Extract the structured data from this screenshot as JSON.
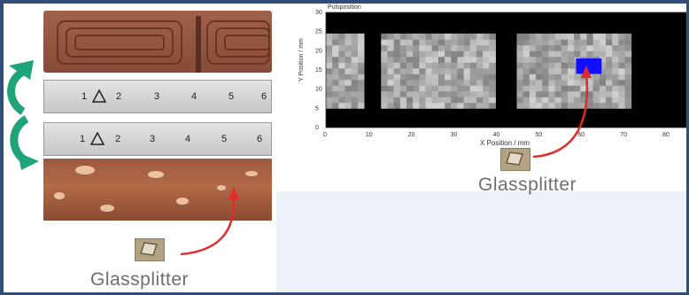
{
  "slide": {
    "accent_color": "#2f4f7a",
    "background_color": "#ffffff"
  },
  "left_panel": {
    "ruler_top_labels": [
      "1",
      "2",
      "3",
      "4",
      "5",
      "6"
    ],
    "ruler_bottom_labels": [
      "1",
      "2",
      "3",
      "4",
      "5",
      "6"
    ],
    "arrow_color": "#1fa37a",
    "pointer_arrow_color": "#e02b2b",
    "crystal_label": "Glassplitter"
  },
  "right_panel": {
    "crystal_label": "Glassplitter",
    "pointer_arrow_color": "#e02b2b"
  },
  "chart_data": {
    "type": "heatmap",
    "title": "Pulsposition",
    "xlabel": "X Position / mm",
    "ylabel": "Y Position / mm",
    "xlim": [
      0,
      85
    ],
    "ylim": [
      0,
      30
    ],
    "x_ticks": [
      "0",
      "10",
      "20",
      "30",
      "40",
      "50",
      "60",
      "70",
      "80"
    ],
    "y_ticks": [
      "0",
      "5",
      "10",
      "15",
      "20",
      "25",
      "30"
    ],
    "background_color": "#000000",
    "series": [
      {
        "region": [
          0,
          8,
          5,
          24
        ],
        "color": "#9a9a9a",
        "kind": "sample"
      },
      {
        "region": [
          13,
          40,
          5,
          24
        ],
        "color": "#a5a5a5",
        "kind": "sample"
      },
      {
        "region": [
          45,
          72,
          5,
          24
        ],
        "color": "#a0a0a0",
        "kind": "sample"
      },
      {
        "region": [
          59,
          65,
          14,
          18
        ],
        "color": "#1010ff",
        "kind": "glass-splinter"
      }
    ]
  }
}
